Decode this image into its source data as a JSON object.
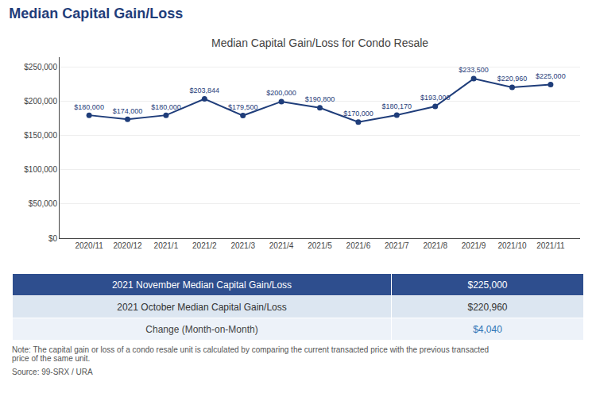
{
  "chart_data": {
    "type": "line",
    "title": "Median Capital Gain/Loss",
    "subtitle": "Median Capital Gain/Loss for Condo Resale",
    "categories": [
      "2020/11",
      "2020/12",
      "2021/1",
      "2021/2",
      "2021/3",
      "2021/4",
      "2021/5",
      "2021/6",
      "2021/7",
      "2021/8",
      "2021/9",
      "2021/10",
      "2021/11"
    ],
    "values": [
      180000,
      174000,
      180000,
      203844,
      179500,
      200000,
      190800,
      170000,
      180170,
      193000,
      233500,
      220960,
      225000
    ],
    "value_labels": [
      "$180,000",
      "$174,000",
      "$180,000",
      "$203,844",
      "$179,500",
      "$200,000",
      "$190,800",
      "$170,000",
      "$180,170",
      "$193,000",
      "$233,500",
      "$220,960",
      "$225,000"
    ],
    "data_labels": true,
    "color": "#1f3d7a",
    "marker": "circle",
    "ylim": [
      0,
      265000
    ],
    "yticks": [
      {
        "value": 0,
        "label": "$0"
      },
      {
        "value": 50000,
        "label": "$50,000"
      },
      {
        "value": 100000,
        "label": "$100,000"
      },
      {
        "value": 150000,
        "label": "$150,000"
      },
      {
        "value": 200000,
        "label": "$200,000"
      },
      {
        "value": 250000,
        "label": "$250,000"
      }
    ],
    "grid": true,
    "table": [
      {
        "label": "2021 November Median Capital Gain/Loss",
        "value": "$225,000",
        "color": "#2e4e8e",
        "text_color": "#ffffff",
        "value_color": "#ffffff"
      },
      {
        "label": "2021 October Median Capital Gain/Loss",
        "value": "$220,960",
        "color": "#dce6f1",
        "text_color": "#333333",
        "value_color": "#333333"
      },
      {
        "label": "Change (Month-on-Month)",
        "value": "$4,040",
        "color": "#edf2f9",
        "text_color": "#444444",
        "value_color": "#2e75b6"
      }
    ],
    "notes": [
      "Note: The capital gain or loss of a condo resale unit is calculated by comparing the current transacted price with the previous transacted\nprice of the same unit.",
      "Source: 99-SRX / URA"
    ]
  }
}
